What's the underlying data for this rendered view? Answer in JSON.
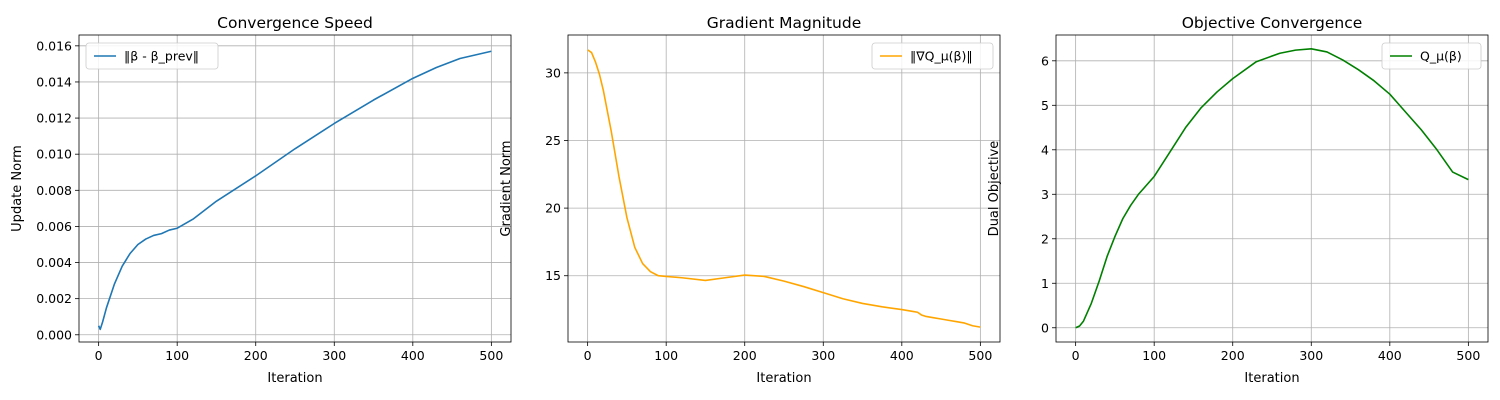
{
  "chart_data": [
    {
      "type": "line",
      "title": "Convergence Speed",
      "xlabel": "Iteration",
      "ylabel": "Update Norm",
      "xlim": [
        -25,
        525
      ],
      "ylim": [
        -0.0004,
        0.0166
      ],
      "xticks": [
        0,
        100,
        200,
        300,
        400,
        500
      ],
      "xtick_labels": [
        "0",
        "100",
        "200",
        "300",
        "400",
        "500"
      ],
      "yticks": [
        0,
        0.002,
        0.004,
        0.006,
        0.008,
        0.01,
        0.012,
        0.014,
        0.016
      ],
      "ytick_labels": [
        "0.000",
        "0.002",
        "0.004",
        "0.006",
        "0.008",
        "0.010",
        "0.012",
        "0.014",
        "0.016"
      ],
      "grid": true,
      "legend_position": "top-left",
      "series": [
        {
          "name": "‖β - β_prev‖",
          "color": "#1f77b4",
          "x": [
            0,
            2,
            5,
            10,
            20,
            30,
            40,
            50,
            60,
            70,
            80,
            90,
            100,
            120,
            150,
            200,
            250,
            300,
            350,
            400,
            430,
            460,
            500
          ],
          "y": [
            0.0005,
            0.0003,
            0.0007,
            0.0015,
            0.0028,
            0.0038,
            0.0045,
            0.005,
            0.0053,
            0.0055,
            0.0056,
            0.0058,
            0.0059,
            0.0064,
            0.0074,
            0.0088,
            0.0103,
            0.0117,
            0.013,
            0.0142,
            0.0148,
            0.0153,
            0.0157
          ]
        }
      ]
    },
    {
      "type": "line",
      "title": "Gradient Magnitude",
      "xlabel": "Iteration",
      "ylabel": "Gradient Norm",
      "xlim": [
        -25,
        525
      ],
      "ylim": [
        10.1,
        32.8
      ],
      "xticks": [
        0,
        100,
        200,
        300,
        400,
        500
      ],
      "xtick_labels": [
        "0",
        "100",
        "200",
        "300",
        "400",
        "500"
      ],
      "yticks": [
        15,
        20,
        25,
        30
      ],
      "ytick_labels": [
        "15",
        "20",
        "25",
        "30"
      ],
      "grid": true,
      "legend_position": "top-right",
      "series": [
        {
          "name": "‖∇Q_μ(β)‖",
          "color": "#ffa500",
          "x": [
            0,
            5,
            10,
            15,
            20,
            30,
            40,
            50,
            60,
            70,
            80,
            90,
            100,
            120,
            150,
            175,
            200,
            225,
            250,
            275,
            300,
            325,
            350,
            375,
            400,
            415,
            420,
            425,
            430,
            440,
            450,
            460,
            470,
            480,
            490,
            500
          ],
          "y": [
            31.7,
            31.5,
            30.8,
            29.9,
            28.7,
            25.7,
            22.3,
            19.3,
            17.1,
            15.9,
            15.3,
            15.0,
            14.95,
            14.85,
            14.65,
            14.85,
            15.05,
            14.95,
            14.6,
            14.2,
            13.75,
            13.3,
            12.95,
            12.7,
            12.5,
            12.35,
            12.3,
            12.1,
            12.0,
            11.9,
            11.8,
            11.7,
            11.6,
            11.5,
            11.3,
            11.2
          ]
        }
      ]
    },
    {
      "type": "line",
      "title": "Objective Convergence",
      "xlabel": "Iteration",
      "ylabel": "Dual Objective",
      "xlim": [
        -25,
        525
      ],
      "ylim": [
        -0.32,
        6.58
      ],
      "xticks": [
        0,
        100,
        200,
        300,
        400,
        500
      ],
      "xtick_labels": [
        "0",
        "100",
        "200",
        "300",
        "400",
        "500"
      ],
      "yticks": [
        0,
        1,
        2,
        3,
        4,
        5,
        6
      ],
      "ytick_labels": [
        "0",
        "1",
        "2",
        "3",
        "4",
        "5",
        "6"
      ],
      "grid": true,
      "legend_position": "top-right",
      "series": [
        {
          "name": "Q_μ(β)",
          "color": "#008000",
          "x": [
            0,
            5,
            10,
            20,
            30,
            40,
            50,
            60,
            70,
            80,
            90,
            100,
            120,
            140,
            160,
            180,
            200,
            230,
            260,
            280,
            300,
            320,
            340,
            360,
            380,
            400,
            420,
            440,
            460,
            480,
            500
          ],
          "y": [
            0.0,
            0.04,
            0.15,
            0.55,
            1.05,
            1.6,
            2.05,
            2.45,
            2.75,
            3.0,
            3.2,
            3.4,
            3.95,
            4.5,
            4.95,
            5.3,
            5.6,
            5.98,
            6.17,
            6.24,
            6.27,
            6.2,
            6.02,
            5.8,
            5.55,
            5.25,
            4.85,
            4.45,
            4.0,
            3.5,
            3.33
          ]
        }
      ]
    }
  ]
}
